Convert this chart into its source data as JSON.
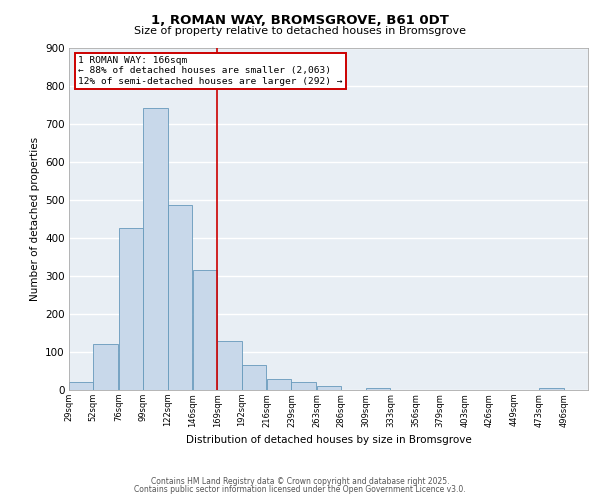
{
  "title": "1, ROMAN WAY, BROMSGROVE, B61 0DT",
  "subtitle": "Size of property relative to detached houses in Bromsgrove",
  "xlabel": "Distribution of detached houses by size in Bromsgrove",
  "ylabel": "Number of detached properties",
  "bin_labels": [
    "29sqm",
    "52sqm",
    "76sqm",
    "99sqm",
    "122sqm",
    "146sqm",
    "169sqm",
    "192sqm",
    "216sqm",
    "239sqm",
    "263sqm",
    "286sqm",
    "309sqm",
    "333sqm",
    "356sqm",
    "379sqm",
    "403sqm",
    "426sqm",
    "449sqm",
    "473sqm",
    "496sqm"
  ],
  "bin_left_edges": [
    29,
    52,
    76,
    99,
    122,
    146,
    169,
    192,
    216,
    239,
    263,
    286,
    309,
    333,
    356,
    379,
    403,
    426,
    449,
    473,
    496
  ],
  "bar_values": [
    20,
    120,
    425,
    740,
    485,
    315,
    130,
    65,
    30,
    20,
    10,
    0,
    5,
    0,
    0,
    0,
    0,
    0,
    0,
    5,
    0
  ],
  "bar_color": "#c8d8ea",
  "bar_edge_color": "#6699bb",
  "vline_value": 169,
  "vline_color": "#cc0000",
  "annotation_title": "1 ROMAN WAY: 166sqm",
  "annotation_line1": "← 88% of detached houses are smaller (2,063)",
  "annotation_line2": "12% of semi-detached houses are larger (292) →",
  "annotation_box_facecolor": "white",
  "annotation_box_edgecolor": "#cc0000",
  "ylim": [
    0,
    900
  ],
  "yticks": [
    0,
    100,
    200,
    300,
    400,
    500,
    600,
    700,
    800,
    900
  ],
  "background_color": "#e8eef4",
  "grid_color": "white",
  "title_fontsize": 9.5,
  "subtitle_fontsize": 8,
  "footer_line1": "Contains HM Land Registry data © Crown copyright and database right 2025.",
  "footer_line2": "Contains public sector information licensed under the Open Government Licence v3.0.",
  "footer_fontsize": 5.5
}
